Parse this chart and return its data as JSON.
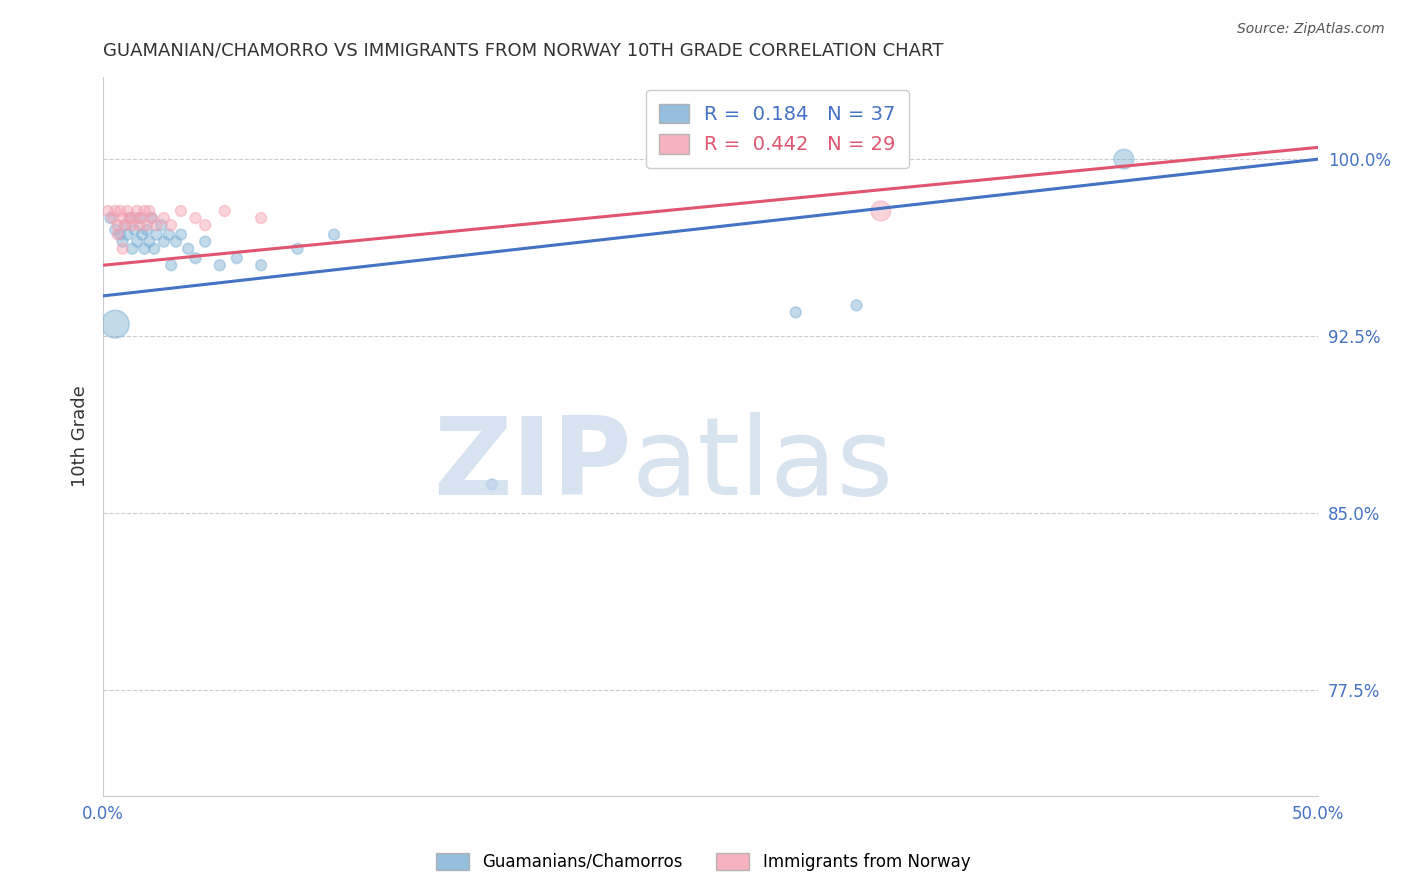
{
  "title": "GUAMANIAN/CHAMORRO VS IMMIGRANTS FROM NORWAY 10TH GRADE CORRELATION CHART",
  "source": "Source: ZipAtlas.com",
  "ylabel": "10th Grade",
  "ytick_labels": [
    "77.5%",
    "85.0%",
    "92.5%",
    "100.0%"
  ],
  "ytick_values": [
    0.775,
    0.85,
    0.925,
    1.0
  ],
  "xlim": [
    0.0,
    0.5
  ],
  "ylim": [
    0.73,
    1.035
  ],
  "blue_R": 0.184,
  "blue_N": 37,
  "pink_R": 0.442,
  "pink_N": 29,
  "blue_label": "Guamanians/Chamorros",
  "pink_label": "Immigrants from Norway",
  "blue_color": "#7BAFD4",
  "pink_color": "#F4A0B0",
  "blue_line_color": "#4472C4",
  "pink_line_color": "#E05570",
  "blue_scatter_x": [
    0.003,
    0.005,
    0.007,
    0.008,
    0.009,
    0.01,
    0.011,
    0.012,
    0.013,
    0.014,
    0.015,
    0.016,
    0.017,
    0.018,
    0.019,
    0.02,
    0.021,
    0.022,
    0.024,
    0.025,
    0.027,
    0.028,
    0.03,
    0.032,
    0.035,
    0.038,
    0.042,
    0.048,
    0.055,
    0.065,
    0.08,
    0.095,
    0.16,
    0.285,
    0.31,
    0.42,
    0.005
  ],
  "blue_scatter_y": [
    0.975,
    0.97,
    0.968,
    0.965,
    0.972,
    0.968,
    0.975,
    0.962,
    0.97,
    0.965,
    0.975,
    0.968,
    0.962,
    0.97,
    0.965,
    0.975,
    0.962,
    0.968,
    0.972,
    0.965,
    0.968,
    0.955,
    0.965,
    0.968,
    0.962,
    0.958,
    0.965,
    0.955,
    0.958,
    0.955,
    0.962,
    0.968,
    0.862,
    0.935,
    0.938,
    1.0,
    0.93
  ],
  "blue_scatter_sizes": [
    60,
    60,
    60,
    60,
    60,
    60,
    60,
    60,
    60,
    60,
    60,
    60,
    60,
    60,
    60,
    60,
    60,
    60,
    60,
    60,
    60,
    60,
    60,
    60,
    60,
    60,
    60,
    60,
    60,
    60,
    60,
    60,
    60,
    60,
    60,
    200,
    400
  ],
  "pink_scatter_x": [
    0.002,
    0.004,
    0.005,
    0.006,
    0.007,
    0.008,
    0.009,
    0.01,
    0.011,
    0.012,
    0.013,
    0.014,
    0.015,
    0.016,
    0.017,
    0.018,
    0.019,
    0.02,
    0.022,
    0.025,
    0.028,
    0.032,
    0.038,
    0.042,
    0.05,
    0.065,
    0.32,
    0.006,
    0.008
  ],
  "pink_scatter_y": [
    0.978,
    0.975,
    0.978,
    0.972,
    0.978,
    0.975,
    0.972,
    0.978,
    0.975,
    0.972,
    0.975,
    0.978,
    0.972,
    0.975,
    0.978,
    0.972,
    0.978,
    0.975,
    0.972,
    0.975,
    0.972,
    0.978,
    0.975,
    0.972,
    0.978,
    0.975,
    0.978,
    0.968,
    0.962
  ],
  "pink_scatter_sizes": [
    60,
    60,
    60,
    60,
    60,
    60,
    60,
    60,
    60,
    60,
    60,
    60,
    60,
    60,
    60,
    60,
    60,
    60,
    60,
    60,
    60,
    60,
    60,
    60,
    60,
    60,
    200,
    60,
    60
  ],
  "blue_line_x": [
    0.0,
    0.5
  ],
  "blue_line_y": [
    0.942,
    1.0
  ],
  "pink_line_x": [
    0.0,
    0.5
  ],
  "pink_line_y": [
    0.955,
    1.005
  ],
  "background_color": "#FFFFFF",
  "grid_color": "#CCCCCC",
  "title_color": "#333333",
  "axis_color": "#4472C4",
  "ylabel_color": "#333333"
}
